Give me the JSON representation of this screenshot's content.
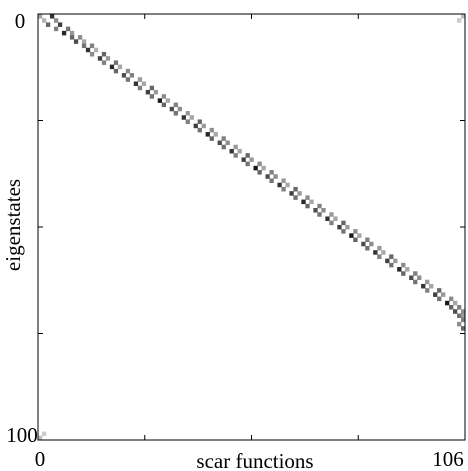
{
  "chart_data": {
    "type": "heatmap",
    "title": "",
    "xlabel": "scar functions",
    "ylabel": "eigenstates",
    "xlim": [
      0,
      106
    ],
    "ylim": [
      0,
      100
    ],
    "x_tick_labels": [
      "0",
      "106"
    ],
    "y_tick_labels": [
      "0",
      "100"
    ],
    "y_direction": "top-to-bottom",
    "colormap": "grayscale (white = 0, black = max overlap)",
    "grid": false,
    "legend": "none",
    "cells": [
      [
        0,
        0,
        0.35
      ],
      [
        0,
        3,
        0.8
      ],
      [
        1,
        1,
        0.3
      ],
      [
        1,
        4,
        0.45
      ],
      [
        2,
        2,
        0.6
      ],
      [
        2,
        5,
        0.75
      ],
      [
        3,
        4,
        0.5
      ],
      [
        3,
        7,
        0.55
      ],
      [
        4,
        6,
        0.85
      ],
      [
        4,
        8,
        0.4
      ],
      [
        5,
        8,
        0.6
      ],
      [
        5,
        10,
        0.45
      ],
      [
        6,
        9,
        0.7
      ],
      [
        6,
        11,
        0.35
      ],
      [
        7,
        11,
        0.55
      ],
      [
        7,
        13,
        0.5
      ],
      [
        8,
        12,
        0.8
      ],
      [
        8,
        14,
        0.3
      ],
      [
        9,
        13,
        0.45
      ],
      [
        9,
        16,
        0.6
      ],
      [
        10,
        15,
        0.75
      ],
      [
        10,
        17,
        0.4
      ],
      [
        11,
        16,
        0.5
      ],
      [
        11,
        19,
        0.55
      ],
      [
        12,
        18,
        0.85
      ],
      [
        12,
        20,
        0.35
      ],
      [
        13,
        19,
        0.6
      ],
      [
        13,
        22,
        0.45
      ],
      [
        14,
        21,
        0.7
      ],
      [
        14,
        23,
        0.5
      ],
      [
        15,
        22,
        0.55
      ],
      [
        15,
        25,
        0.4
      ],
      [
        16,
        24,
        0.8
      ],
      [
        16,
        26,
        0.35
      ],
      [
        17,
        25,
        0.5
      ],
      [
        17,
        28,
        0.6
      ],
      [
        18,
        27,
        0.75
      ],
      [
        18,
        29,
        0.4
      ],
      [
        19,
        28,
        0.55
      ],
      [
        19,
        31,
        0.45
      ],
      [
        20,
        30,
        0.9
      ],
      [
        20,
        32,
        0.35
      ],
      [
        21,
        31,
        0.6
      ],
      [
        21,
        34,
        0.5
      ],
      [
        22,
        33,
        0.7
      ],
      [
        22,
        35,
        0.45
      ],
      [
        23,
        34,
        0.55
      ],
      [
        23,
        37,
        0.4
      ],
      [
        24,
        36,
        0.8
      ],
      [
        24,
        38,
        0.35
      ],
      [
        25,
        37,
        0.5
      ],
      [
        25,
        40,
        0.6
      ],
      [
        26,
        39,
        0.75
      ],
      [
        26,
        41,
        0.4
      ],
      [
        27,
        40,
        0.55
      ],
      [
        27,
        43,
        0.45
      ],
      [
        28,
        42,
        0.85
      ],
      [
        28,
        44,
        0.35
      ],
      [
        29,
        43,
        0.6
      ],
      [
        29,
        46,
        0.5
      ],
      [
        30,
        45,
        0.7
      ],
      [
        30,
        47,
        0.45
      ],
      [
        31,
        46,
        0.55
      ],
      [
        31,
        49,
        0.4
      ],
      [
        32,
        48,
        0.8
      ],
      [
        32,
        50,
        0.35
      ],
      [
        33,
        49,
        0.5
      ],
      [
        33,
        52,
        0.6
      ],
      [
        34,
        51,
        0.75
      ],
      [
        34,
        53,
        0.4
      ],
      [
        35,
        52,
        0.55
      ],
      [
        35,
        55,
        0.45
      ],
      [
        36,
        54,
        0.9
      ],
      [
        36,
        56,
        0.35
      ],
      [
        37,
        55,
        0.6
      ],
      [
        37,
        58,
        0.5
      ],
      [
        38,
        57,
        0.7
      ],
      [
        38,
        59,
        0.45
      ],
      [
        39,
        58,
        0.55
      ],
      [
        39,
        61,
        0.4
      ],
      [
        40,
        60,
        0.8
      ],
      [
        40,
        62,
        0.35
      ],
      [
        41,
        61,
        0.5
      ],
      [
        41,
        64,
        0.6
      ],
      [
        42,
        63,
        0.75
      ],
      [
        42,
        65,
        0.4
      ],
      [
        43,
        64,
        0.55
      ],
      [
        43,
        67,
        0.45
      ],
      [
        44,
        66,
        0.85
      ],
      [
        44,
        68,
        0.35
      ],
      [
        45,
        67,
        0.6
      ],
      [
        45,
        70,
        0.5
      ],
      [
        46,
        69,
        0.7
      ],
      [
        46,
        71,
        0.45
      ],
      [
        47,
        70,
        0.55
      ],
      [
        47,
        73,
        0.4
      ],
      [
        48,
        72,
        0.8
      ],
      [
        48,
        74,
        0.35
      ],
      [
        49,
        73,
        0.5
      ],
      [
        49,
        76,
        0.6
      ],
      [
        50,
        75,
        0.75
      ],
      [
        50,
        77,
        0.4
      ],
      [
        51,
        76,
        0.55
      ],
      [
        51,
        79,
        0.45
      ],
      [
        52,
        78,
        0.9
      ],
      [
        52,
        80,
        0.35
      ],
      [
        53,
        79,
        0.6
      ],
      [
        53,
        82,
        0.5
      ],
      [
        54,
        81,
        0.7
      ],
      [
        54,
        83,
        0.45
      ],
      [
        55,
        82,
        0.55
      ],
      [
        55,
        85,
        0.4
      ],
      [
        56,
        84,
        0.8
      ],
      [
        56,
        86,
        0.35
      ],
      [
        57,
        85,
        0.5
      ],
      [
        57,
        88,
        0.6
      ],
      [
        58,
        87,
        0.75
      ],
      [
        58,
        89,
        0.4
      ],
      [
        59,
        88,
        0.55
      ],
      [
        59,
        91,
        0.45
      ],
      [
        60,
        90,
        0.85
      ],
      [
        60,
        92,
        0.35
      ],
      [
        61,
        91,
        0.6
      ],
      [
        61,
        94,
        0.5
      ],
      [
        62,
        93,
        0.7
      ],
      [
        62,
        95,
        0.45
      ],
      [
        63,
        94,
        0.55
      ],
      [
        63,
        97,
        0.4
      ],
      [
        64,
        96,
        0.8
      ],
      [
        64,
        98,
        0.35
      ],
      [
        65,
        97,
        0.5
      ],
      [
        65,
        100,
        0.6
      ],
      [
        66,
        99,
        0.75
      ],
      [
        66,
        101,
        0.4
      ],
      [
        67,
        100,
        0.55
      ],
      [
        67,
        103,
        0.45
      ],
      [
        68,
        102,
        0.9
      ],
      [
        68,
        104,
        0.35
      ],
      [
        69,
        103,
        0.6
      ],
      [
        69,
        105,
        0.5
      ],
      [
        70,
        104,
        0.7
      ],
      [
        70,
        106,
        0.45
      ],
      [
        71,
        105,
        0.55
      ],
      [
        71,
        106,
        0.4
      ],
      [
        72,
        106,
        0.5
      ],
      [
        73,
        105,
        0.45
      ],
      [
        74,
        106,
        0.6
      ],
      [
        100,
        0,
        0.25
      ],
      [
        99,
        1,
        0.2
      ],
      [
        0,
        106,
        0.25
      ],
      [
        1,
        105,
        0.2
      ]
    ]
  }
}
